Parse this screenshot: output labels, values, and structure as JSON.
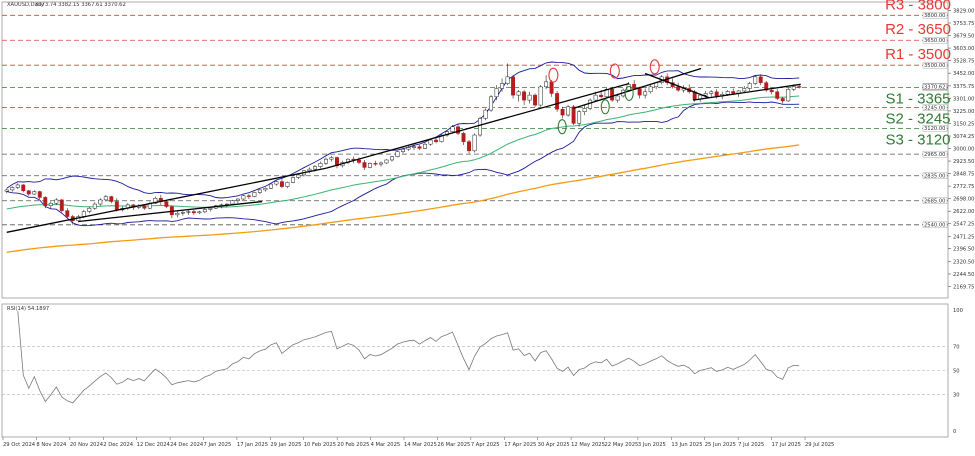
{
  "header": {
    "symbol": "XAUUSD,Daily",
    "ohlc": "3373.74 3382.15 3367.61 3370.62"
  },
  "rsi_header": "RSI(14) 54.1897",
  "colors": {
    "resistance": "#e53935",
    "support": "#2e7d32",
    "bollinger": "#1a1a9c",
    "ma_green": "#3cb371",
    "ma_orange": "#f39c12",
    "trendline": "#000000",
    "candle_up": "#1b5e20",
    "candle_down": "#b71c1c",
    "grid": "#e8e8e8",
    "price_tag": "#ffffff",
    "price_tag_border": "#999999"
  },
  "chart_data": [
    {
      "type": "candlestick",
      "title": "XAUUSD,Daily",
      "ylim": [
        2100,
        3880
      ],
      "y_ticks": [
        2169.75,
        2244.5,
        2320.5,
        2396.5,
        2471.25,
        2547.25,
        2622.0,
        2698.0,
        2772.75,
        2848.75,
        2923.5,
        3000.0,
        3074.25,
        3150.25,
        3225.0,
        3301.0,
        3375.75,
        3452.0,
        3528.75,
        3603.0,
        3679.5,
        3753.75,
        3829.0
      ],
      "x_ticks": [
        "29 Oct 2024",
        "8 Nov 2024",
        "20 Nov 2024",
        "2 Dec 2024",
        "12 Dec 2024",
        "24 Dec 2024",
        "7 Jan 2025",
        "17 Jan 2025",
        "29 Jan 2025",
        "10 Feb 2025",
        "20 Feb 2025",
        "4 Mar 2025",
        "14 Mar 2025",
        "26 Mar 2025",
        "7 Apr 2025",
        "17 Apr 2025",
        "30 Apr 2025",
        "12 May 2025",
        "22 May 2025",
        "3 Jun 2025",
        "13 Jun 2025",
        "25 Jun 2025",
        "7 Jul 2025",
        "17 Jul 2025",
        "29 Jul 2025"
      ],
      "horizontal_levels": [
        {
          "label": "R3 - 3800",
          "value": 3800,
          "kind": "resistance",
          "tag": "3800.00"
        },
        {
          "label": "R2 - 3650",
          "value": 3650,
          "kind": "resistance",
          "tag": "3650.00"
        },
        {
          "label": "R1 - 3500",
          "value": 3500,
          "kind": "resistance",
          "tag": "3500.00"
        },
        {
          "label": "S1 - 3365",
          "value": 3365,
          "kind": "support",
          "tag": "3365.00"
        },
        {
          "label": "S2 - 3245",
          "value": 3245,
          "kind": "support",
          "tag": "3245.00"
        },
        {
          "label": "S3 - 3120",
          "value": 3120,
          "kind": "support",
          "tag": "3120.00"
        },
        {
          "label": "",
          "value": 2965,
          "kind": "unlabeled",
          "tag": "2965.00"
        },
        {
          "label": "",
          "value": 2835,
          "kind": "unlabeled",
          "tag": "2835.00"
        },
        {
          "label": "",
          "value": 2685,
          "kind": "unlabeled",
          "tag": "2685.00"
        },
        {
          "label": "",
          "value": 2540,
          "kind": "unlabeled",
          "tag": "2540.00"
        }
      ],
      "current_price_tag": "3370.62",
      "ohlc": [
        [
          2742,
          2758,
          2730,
          2750
        ],
        [
          2750,
          2772,
          2740,
          2765
        ],
        [
          2765,
          2790,
          2755,
          2780
        ],
        [
          2780,
          2785,
          2735,
          2745
        ],
        [
          2745,
          2750,
          2715,
          2725
        ],
        [
          2725,
          2748,
          2720,
          2740
        ],
        [
          2740,
          2745,
          2695,
          2705
        ],
        [
          2705,
          2712,
          2640,
          2655
        ],
        [
          2655,
          2680,
          2640,
          2670
        ],
        [
          2670,
          2700,
          2660,
          2690
        ],
        [
          2690,
          2695,
          2615,
          2625
        ],
        [
          2625,
          2640,
          2580,
          2590
        ],
        [
          2590,
          2600,
          2540,
          2565
        ],
        [
          2565,
          2600,
          2555,
          2590
        ],
        [
          2590,
          2630,
          2580,
          2620
        ],
        [
          2620,
          2650,
          2610,
          2640
        ],
        [
          2640,
          2675,
          2630,
          2665
        ],
        [
          2665,
          2700,
          2655,
          2690
        ],
        [
          2690,
          2720,
          2680,
          2710
        ],
        [
          2710,
          2715,
          2670,
          2680
        ],
        [
          2680,
          2700,
          2620,
          2630
        ],
        [
          2630,
          2650,
          2620,
          2640
        ],
        [
          2640,
          2670,
          2630,
          2660
        ],
        [
          2660,
          2665,
          2630,
          2645
        ],
        [
          2645,
          2665,
          2635,
          2655
        ],
        [
          2655,
          2660,
          2630,
          2640
        ],
        [
          2640,
          2680,
          2635,
          2670
        ],
        [
          2670,
          2710,
          2665,
          2700
        ],
        [
          2700,
          2720,
          2660,
          2680
        ],
        [
          2680,
          2690,
          2640,
          2650
        ],
        [
          2650,
          2655,
          2580,
          2600
        ],
        [
          2600,
          2620,
          2585,
          2610
        ],
        [
          2610,
          2625,
          2595,
          2615
        ],
        [
          2615,
          2630,
          2600,
          2620
        ],
        [
          2620,
          2630,
          2600,
          2612
        ],
        [
          2612,
          2625,
          2605,
          2618
        ],
        [
          2618,
          2640,
          2610,
          2632
        ],
        [
          2632,
          2645,
          2620,
          2640
        ],
        [
          2640,
          2660,
          2635,
          2655
        ],
        [
          2655,
          2668,
          2640,
          2660
        ],
        [
          2660,
          2670,
          2645,
          2665
        ],
        [
          2665,
          2690,
          2660,
          2685
        ],
        [
          2685,
          2700,
          2670,
          2695
        ],
        [
          2695,
          2720,
          2690,
          2715
        ],
        [
          2715,
          2725,
          2695,
          2710
        ],
        [
          2710,
          2740,
          2705,
          2735
        ],
        [
          2735,
          2755,
          2725,
          2750
        ],
        [
          2750,
          2765,
          2740,
          2760
        ],
        [
          2760,
          2790,
          2755,
          2785
        ],
        [
          2785,
          2810,
          2775,
          2800
        ],
        [
          2800,
          2815,
          2760,
          2770
        ],
        [
          2770,
          2800,
          2760,
          2795
        ],
        [
          2795,
          2830,
          2790,
          2825
        ],
        [
          2825,
          2850,
          2815,
          2840
        ],
        [
          2840,
          2870,
          2830,
          2865
        ],
        [
          2865,
          2885,
          2850,
          2875
        ],
        [
          2875,
          2900,
          2860,
          2890
        ],
        [
          2890,
          2920,
          2880,
          2910
        ],
        [
          2910,
          2945,
          2900,
          2935
        ],
        [
          2935,
          2955,
          2920,
          2945
        ],
        [
          2945,
          2950,
          2880,
          2895
        ],
        [
          2895,
          2925,
          2885,
          2915
        ],
        [
          2915,
          2940,
          2905,
          2935
        ],
        [
          2935,
          2950,
          2910,
          2930
        ],
        [
          2930,
          2945,
          2905,
          2915
        ],
        [
          2915,
          2930,
          2870,
          2885
        ],
        [
          2885,
          2915,
          2880,
          2910
        ],
        [
          2910,
          2925,
          2895,
          2905
        ],
        [
          2905,
          2920,
          2890,
          2912
        ],
        [
          2912,
          2935,
          2905,
          2930
        ],
        [
          2930,
          2955,
          2920,
          2950
        ],
        [
          2950,
          2985,
          2945,
          2980
        ],
        [
          2980,
          3005,
          2970,
          2995
        ],
        [
          2995,
          3015,
          2985,
          3005
        ],
        [
          3005,
          3025,
          2990,
          3010
        ],
        [
          3010,
          3020,
          2990,
          3000
        ],
        [
          3000,
          3035,
          2995,
          3025
        ],
        [
          3025,
          3060,
          3015,
          3050
        ],
        [
          3050,
          3065,
          3030,
          3040
        ],
        [
          3040,
          3085,
          3035,
          3080
        ],
        [
          3080,
          3110,
          3070,
          3100
        ],
        [
          3100,
          3140,
          3090,
          3130
        ],
        [
          3130,
          3150,
          3080,
          3090
        ],
        [
          3090,
          3100,
          3020,
          3040
        ],
        [
          3040,
          3050,
          2970,
          2985
        ],
        [
          2985,
          3090,
          2975,
          3080
        ],
        [
          3080,
          3190,
          3070,
          3180
        ],
        [
          3180,
          3240,
          3170,
          3230
        ],
        [
          3230,
          3320,
          3220,
          3310
        ],
        [
          3310,
          3380,
          3290,
          3360
        ],
        [
          3360,
          3420,
          3340,
          3390
        ],
        [
          3390,
          3510,
          3380,
          3430
        ],
        [
          3430,
          3440,
          3300,
          3320
        ],
        [
          3320,
          3350,
          3280,
          3340
        ],
        [
          3340,
          3350,
          3260,
          3290
        ],
        [
          3290,
          3340,
          3270,
          3320
        ],
        [
          3320,
          3330,
          3250,
          3260
        ],
        [
          3260,
          3380,
          3250,
          3370
        ],
        [
          3370,
          3440,
          3355,
          3400
        ],
        [
          3400,
          3410,
          3310,
          3330
        ],
        [
          3330,
          3345,
          3220,
          3235
        ],
        [
          3235,
          3250,
          3180,
          3200
        ],
        [
          3200,
          3260,
          3190,
          3250
        ],
        [
          3250,
          3260,
          3140,
          3150
        ],
        [
          3150,
          3230,
          3130,
          3220
        ],
        [
          3220,
          3260,
          3200,
          3240
        ],
        [
          3240,
          3300,
          3230,
          3290
        ],
        [
          3290,
          3340,
          3280,
          3320
        ],
        [
          3320,
          3350,
          3300,
          3310
        ],
        [
          3310,
          3365,
          3300,
          3355
        ],
        [
          3355,
          3370,
          3280,
          3290
        ],
        [
          3290,
          3330,
          3275,
          3315
        ],
        [
          3315,
          3360,
          3305,
          3350
        ],
        [
          3350,
          3400,
          3340,
          3385
        ],
        [
          3385,
          3410,
          3350,
          3360
        ],
        [
          3360,
          3370,
          3300,
          3320
        ],
        [
          3320,
          3360,
          3300,
          3340
        ],
        [
          3340,
          3380,
          3330,
          3370
        ],
        [
          3370,
          3400,
          3355,
          3395
        ],
        [
          3395,
          3440,
          3385,
          3430
        ],
        [
          3430,
          3450,
          3380,
          3395
        ],
        [
          3395,
          3420,
          3360,
          3370
        ],
        [
          3370,
          3395,
          3340,
          3350
        ],
        [
          3350,
          3380,
          3335,
          3360
        ],
        [
          3360,
          3385,
          3330,
          3340
        ],
        [
          3340,
          3350,
          3280,
          3295
        ],
        [
          3295,
          3330,
          3280,
          3320
        ],
        [
          3320,
          3345,
          3305,
          3330
        ],
        [
          3330,
          3350,
          3310,
          3340
        ],
        [
          3340,
          3355,
          3300,
          3315
        ],
        [
          3315,
          3340,
          3295,
          3325
        ],
        [
          3325,
          3350,
          3315,
          3342
        ],
        [
          3342,
          3360,
          3320,
          3330
        ],
        [
          3330,
          3350,
          3310,
          3345
        ],
        [
          3345,
          3375,
          3335,
          3360
        ],
        [
          3360,
          3400,
          3345,
          3390
        ],
        [
          3390,
          3440,
          3380,
          3430
        ],
        [
          3430,
          3438,
          3380,
          3395
        ],
        [
          3395,
          3405,
          3340,
          3350
        ],
        [
          3350,
          3365,
          3325,
          3340
        ],
        [
          3340,
          3355,
          3290,
          3300
        ],
        [
          3300,
          3310,
          3270,
          3285
        ],
        [
          3285,
          3365,
          3280,
          3355
        ],
        [
          3355,
          3385,
          3345,
          3372
        ],
        [
          3372,
          3385,
          3360,
          3370
        ]
      ],
      "rsi": {
        "ylim": [
          0,
          100
        ],
        "y_ticks": [
          100,
          70,
          50,
          30,
          0
        ],
        "levels": [
          70,
          50,
          30
        ]
      }
    }
  ]
}
